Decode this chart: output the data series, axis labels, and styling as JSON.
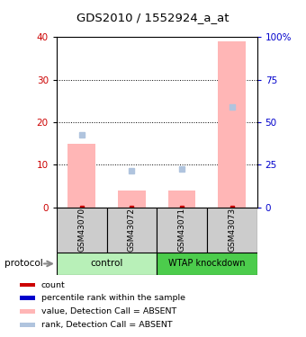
{
  "title": "GDS2010 / 1552924_a_at",
  "samples": [
    "GSM43070",
    "GSM43072",
    "GSM43071",
    "GSM43073"
  ],
  "bar_values_pink": [
    15.0,
    4.0,
    4.0,
    39.0
  ],
  "dot_values_blue_pct": [
    42.5,
    21.25,
    22.5,
    59.0
  ],
  "ylim_left": [
    0,
    40
  ],
  "ylim_right": [
    0,
    100
  ],
  "yticks_left": [
    0,
    10,
    20,
    30,
    40
  ],
  "yticks_right": [
    0,
    25,
    50,
    75,
    100
  ],
  "ytick_labels_right": [
    "0",
    "25",
    "50",
    "75",
    "100%"
  ],
  "bar_color": "#ffb6b6",
  "dot_color": "#b0c4de",
  "bar_edge_color": "#cc0000",
  "dot_marker_color": "#0000cc",
  "control_color": "#b8f0b8",
  "knockdown_color": "#4ccc4c",
  "sample_box_color": "#cccccc",
  "left_tick_color": "#cc0000",
  "right_tick_color": "#0000cc",
  "legend_items": [
    {
      "color": "#cc0000",
      "label": "count"
    },
    {
      "color": "#0000cc",
      "label": "percentile rank within the sample"
    },
    {
      "color": "#ffb6b6",
      "label": "value, Detection Call = ABSENT"
    },
    {
      "color": "#b0c4de",
      "label": "rank, Detection Call = ABSENT"
    }
  ]
}
